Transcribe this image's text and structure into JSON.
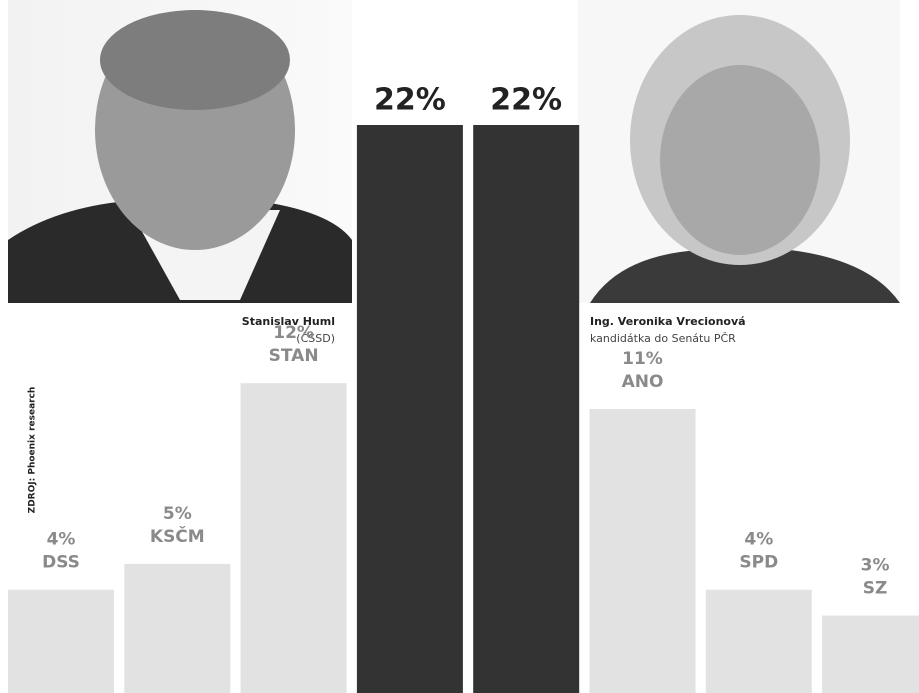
{
  "chart_data": {
    "type": "bar",
    "categories": [
      "DSS",
      "KSČM",
      "STAN",
      null,
      null,
      "ANO",
      "SPD",
      "SZ"
    ],
    "values": [
      4,
      5,
      12,
      22,
      22,
      11,
      4,
      3
    ],
    "value_labels": [
      "4%",
      "5%",
      "12%",
      "22%",
      "22%",
      "11%",
      "4%",
      "3%"
    ],
    "colors": [
      "#e2e2e2",
      "#e2e2e2",
      "#e2e2e2",
      "#333333",
      "#333333",
      "#e2e2e2",
      "#e2e2e2",
      "#e2e2e2"
    ],
    "ylim": [
      0,
      22
    ],
    "candidates": [
      {
        "name": "Stanislav Huml",
        "party": "(ČSSD)"
      },
      {
        "name": "Ing. Veronika Vrecionová",
        "party": "kandidátka do Senátu PČR"
      }
    ],
    "source": "ZDROJ: Phoenix research"
  }
}
